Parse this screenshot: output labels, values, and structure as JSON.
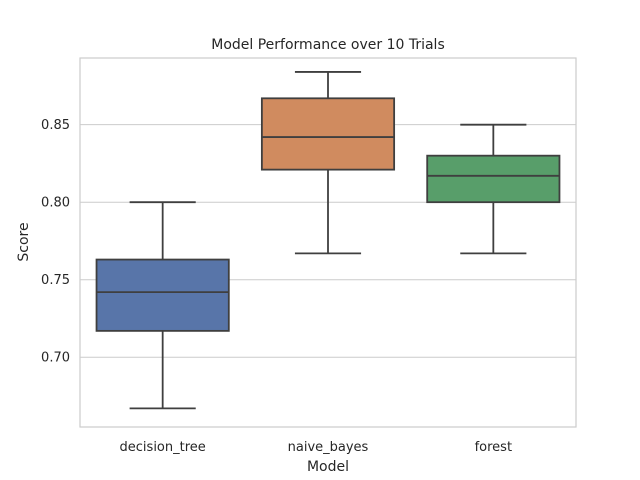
{
  "chart_data": {
    "type": "box",
    "title": "Model Performance over 10 Trials",
    "xlabel": "Model",
    "ylabel": "Score",
    "ylim": [
      0.655,
      0.893
    ],
    "yticks": [
      0.7,
      0.75,
      0.8,
      0.85
    ],
    "ytick_labels": [
      "0.70",
      "0.75",
      "0.80",
      "0.85"
    ],
    "grid": true,
    "categories": [
      "decision_tree",
      "naive_bayes",
      "forest"
    ],
    "boxes": [
      {
        "name": "decision_tree",
        "min": 0.667,
        "q1": 0.717,
        "median": 0.742,
        "q3": 0.763,
        "max": 0.8,
        "color": "#5875a9"
      },
      {
        "name": "naive_bayes",
        "min": 0.767,
        "q1": 0.821,
        "median": 0.842,
        "q3": 0.867,
        "max": 0.884,
        "color": "#d08b5f"
      },
      {
        "name": "forest",
        "min": 0.767,
        "q1": 0.8,
        "median": 0.817,
        "q3": 0.83,
        "max": 0.85,
        "color": "#589e6a"
      }
    ]
  }
}
